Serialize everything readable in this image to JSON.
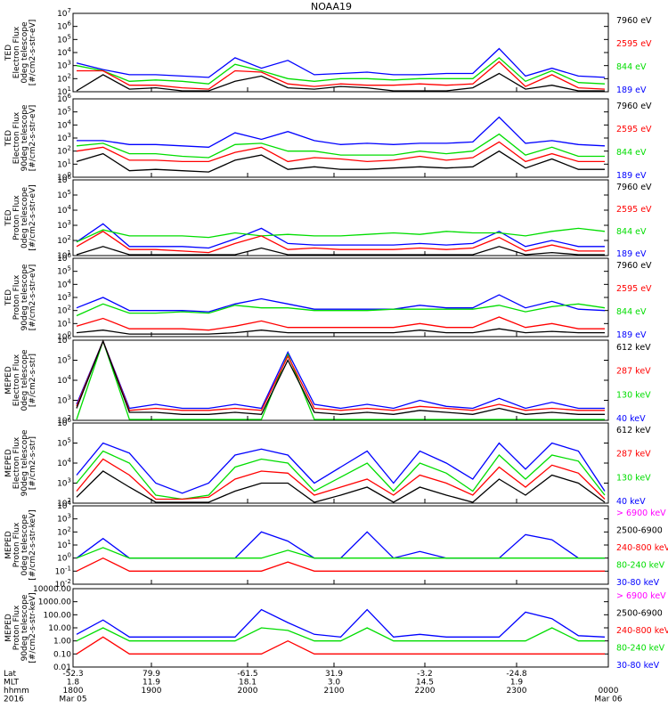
{
  "title": "NOAA19",
  "colors": {
    "black": "#000000",
    "red": "#ff0000",
    "green": "#00dd00",
    "blue": "#0000ff",
    "magenta": "#ff00ff"
  },
  "chart_data": [
    {
      "type": "line",
      "panel": 1,
      "ylabel": [
        "TED",
        "Electron Flux",
        "0deg telescope",
        "[#/cm2-s-str-eV]"
      ],
      "yticks": [
        "10^1",
        "10^2",
        "10^3",
        "10^4",
        "10^5",
        "10^6",
        "10^7"
      ],
      "series": [
        {
          "name": "7960 eV",
          "color": "black",
          "values": [
            1,
            2.3,
            1.2,
            1.3,
            1,
            1,
            1.8,
            2.2,
            1.3,
            1.2,
            1.4,
            1.3,
            1,
            1,
            1,
            1.3,
            2.4,
            1.2,
            1.5,
            1,
            1
          ]
        },
        {
          "name": "2595 eV",
          "color": "red",
          "values": [
            2.6,
            2.6,
            1.5,
            1.5,
            1.3,
            1.2,
            2.6,
            2.5,
            1.6,
            1.4,
            1.6,
            1.5,
            1.5,
            1.6,
            1.5,
            1.6,
            3.3,
            1.4,
            2.3,
            1.3,
            1.2
          ]
        },
        {
          "name": "844 eV",
          "color": "green",
          "values": [
            3,
            2.6,
            1.8,
            1.9,
            1.8,
            1.6,
            3.1,
            2.6,
            2,
            1.8,
            2,
            2,
            1.9,
            2,
            2,
            2,
            3.6,
            1.8,
            2.6,
            1.7,
            1.6
          ]
        },
        {
          "name": "189 eV",
          "color": "blue",
          "values": [
            3.2,
            2.7,
            2.3,
            2.3,
            2.2,
            2.1,
            3.6,
            2.8,
            3.4,
            2.3,
            2.4,
            2.5,
            2.3,
            2.3,
            2.4,
            2.4,
            4.3,
            2.2,
            2.8,
            2.2,
            2.1
          ]
        }
      ]
    },
    {
      "type": "line",
      "panel": 2,
      "ylabel": [
        "TED",
        "Electron Flux",
        "90deg telescope",
        "[#/cm2-s-str-eV]"
      ],
      "yticks": [
        "10^0",
        "10^1",
        "10^2",
        "10^3",
        "10^4",
        "10^5",
        "10^6"
      ],
      "series": [
        {
          "name": "7960 eV",
          "color": "black",
          "values": [
            1.2,
            1.8,
            0.5,
            0.6,
            0.5,
            0.4,
            1.3,
            1.7,
            0.6,
            0.8,
            0.6,
            0.6,
            0.7,
            0.8,
            0.7,
            0.8,
            2,
            0.7,
            1.4,
            0.6,
            0.6
          ]
        },
        {
          "name": "2595 eV",
          "color": "red",
          "values": [
            2,
            2.3,
            1.3,
            1.3,
            1.2,
            1.2,
            1.9,
            2.3,
            1.2,
            1.5,
            1.4,
            1.2,
            1.3,
            1.6,
            1.3,
            1.5,
            2.7,
            1.2,
            1.8,
            1.2,
            1.2
          ]
        },
        {
          "name": "844 eV",
          "color": "green",
          "values": [
            2.4,
            2.6,
            1.8,
            1.8,
            1.6,
            1.5,
            2.5,
            2.6,
            2,
            2,
            1.7,
            1.7,
            1.7,
            2,
            1.8,
            2,
            3.3,
            1.7,
            2.3,
            1.6,
            1.6
          ]
        },
        {
          "name": "189 eV",
          "color": "blue",
          "values": [
            2.8,
            2.8,
            2.5,
            2.5,
            2.4,
            2.3,
            3.4,
            2.9,
            3.5,
            2.8,
            2.5,
            2.6,
            2.5,
            2.6,
            2.6,
            2.7,
            4.6,
            2.6,
            2.8,
            2.5,
            2.4
          ]
        }
      ]
    },
    {
      "type": "line",
      "panel": 3,
      "ylabel": [
        "TED",
        "Proton Flux",
        "0deg telescope",
        "[#/cm2-s-str-eV]"
      ],
      "yticks": [
        "10^1",
        "10^2",
        "10^3",
        "10^4",
        "10^5",
        "10^6"
      ],
      "series": [
        {
          "name": "7960 eV",
          "color": "black",
          "values": [
            1,
            1.6,
            0.8,
            0.8,
            0.8,
            0.7,
            1,
            1.5,
            0.9,
            0.8,
            0.8,
            0.8,
            0.8,
            0.9,
            0.8,
            0.8,
            1.6,
            0.8,
            1.2,
            0.7,
            0.7
          ]
        },
        {
          "name": "2595 eV",
          "color": "red",
          "values": [
            1.6,
            2.6,
            1.4,
            1.4,
            1.3,
            1.2,
            1.8,
            2.3,
            1.4,
            1.5,
            1.4,
            1.4,
            1.4,
            1.5,
            1.4,
            1.5,
            2.2,
            1.3,
            1.7,
            1.3,
            1.3
          ]
        },
        {
          "name": "844 eV",
          "color": "green",
          "values": [
            1.9,
            2.7,
            2.3,
            2.3,
            2.3,
            2.2,
            2.5,
            2.3,
            2.4,
            2.3,
            2.3,
            2.4,
            2.5,
            2.4,
            2.6,
            2.5,
            2.5,
            2.3,
            2.6,
            2.8,
            2.6
          ]
        },
        {
          "name": "189 eV",
          "color": "blue",
          "values": [
            1.9,
            3.1,
            1.6,
            1.6,
            1.6,
            1.5,
            2.1,
            2.8,
            1.8,
            1.7,
            1.7,
            1.7,
            1.7,
            1.8,
            1.7,
            1.8,
            2.6,
            1.6,
            2,
            1.6,
            1.6
          ]
        }
      ]
    },
    {
      "type": "line",
      "panel": 4,
      "ylabel": [
        "TED",
        "Proton Flux",
        "90deg telescope",
        "[#/cm2-s-str-eV]"
      ],
      "yticks": [
        "10^0",
        "10^1",
        "10^2",
        "10^3",
        "10^4",
        "10^5",
        "10^6"
      ],
      "series": [
        {
          "name": "7960 eV",
          "color": "black",
          "values": [
            0.3,
            0.5,
            0.2,
            0.2,
            0.2,
            0.2,
            0.3,
            0.5,
            0.3,
            0.3,
            0.3,
            0.3,
            0.3,
            0.5,
            0.3,
            0.3,
            0.6,
            0.3,
            0.4,
            0.3,
            0.3
          ]
        },
        {
          "name": "2595 eV",
          "color": "red",
          "values": [
            0.8,
            1.4,
            0.6,
            0.6,
            0.6,
            0.5,
            0.8,
            1.2,
            0.7,
            0.7,
            0.7,
            0.7,
            0.7,
            1,
            0.7,
            0.7,
            1.5,
            0.7,
            1,
            0.6,
            0.6
          ]
        },
        {
          "name": "844 eV",
          "color": "green",
          "values": [
            1.6,
            2.5,
            1.8,
            1.8,
            1.9,
            1.8,
            2.4,
            2.2,
            2.2,
            2,
            2,
            2,
            2.1,
            2.1,
            2.1,
            2.1,
            2.4,
            1.9,
            2.3,
            2.5,
            2.2
          ]
        },
        {
          "name": "189 eV",
          "color": "blue",
          "values": [
            2.2,
            3,
            2,
            2,
            2,
            1.9,
            2.5,
            2.9,
            2.5,
            2.1,
            2.1,
            2.1,
            2.1,
            2.4,
            2.2,
            2.2,
            3.2,
            2.2,
            2.7,
            2.1,
            2
          ]
        }
      ]
    },
    {
      "type": "line",
      "panel": 5,
      "ylabel": [
        "MEPED",
        "Electron Flux",
        "0deg telescope",
        "[#/cm2-s-str]"
      ],
      "yticks": [
        "10^2",
        "10^3",
        "10^4",
        "10^5",
        "10^6"
      ],
      "series": [
        {
          "name": "612 keV",
          "color": "black",
          "values": [
            2.6,
            6.1,
            2.4,
            2.4,
            2.3,
            2.3,
            2.4,
            2.3,
            5,
            2.4,
            2.3,
            2.4,
            2.3,
            2.5,
            2.4,
            2.3,
            2.6,
            2.3,
            2.4,
            2.3,
            2.3
          ]
        },
        {
          "name": "287 keV",
          "color": "red",
          "values": [
            2.7,
            6.2,
            2.5,
            2.6,
            2.5,
            2.5,
            2.6,
            2.5,
            5.2,
            2.6,
            2.5,
            2.6,
            2.5,
            2.7,
            2.6,
            2.5,
            2.8,
            2.5,
            2.6,
            2.5,
            2.5
          ]
        },
        {
          "name": "130 keV",
          "color": "green",
          "values": [
            2,
            6.2,
            2,
            2,
            2,
            2,
            2,
            2,
            5.3,
            2,
            2,
            2,
            2,
            2,
            2,
            2,
            2,
            2,
            2,
            2,
            2
          ]
        },
        {
          "name": "40 keV",
          "color": "blue",
          "values": [
            2.8,
            6.3,
            2.6,
            2.8,
            2.6,
            2.6,
            2.8,
            2.6,
            5.4,
            2.8,
            2.6,
            2.8,
            2.6,
            3,
            2.7,
            2.6,
            3.1,
            2.6,
            2.9,
            2.6,
            2.6
          ]
        }
      ]
    },
    {
      "type": "line",
      "panel": 6,
      "ylabel": [
        "MEPED",
        "Electron Flux",
        "90deg telescope",
        "[#/cm2-s-str]"
      ],
      "yticks": [
        "10^2",
        "10^3",
        "10^4",
        "10^5",
        "10^6"
      ],
      "series": [
        {
          "name": "612 keV",
          "color": "black",
          "values": [
            2.3,
            3.6,
            2.8,
            2,
            2,
            2,
            2.6,
            3,
            3,
            2,
            2.4,
            2.8,
            2,
            2.8,
            2.4,
            2,
            3.2,
            2.4,
            3.4,
            3,
            2
          ]
        },
        {
          "name": "287 keV",
          "color": "red",
          "values": [
            2.6,
            4.2,
            3.4,
            2.2,
            2.2,
            2.3,
            3.2,
            3.6,
            3.5,
            2.4,
            2.8,
            3.2,
            2.4,
            3.4,
            3,
            2.4,
            3.8,
            2.8,
            3.9,
            3.5,
            2.2
          ]
        },
        {
          "name": "130 keV",
          "color": "green",
          "values": [
            3,
            4.6,
            4,
            2.4,
            2.2,
            2.4,
            3.8,
            4.2,
            4,
            2.6,
            3.3,
            4,
            2.6,
            4,
            3.5,
            2.6,
            4.4,
            3.2,
            4.4,
            4.1,
            2.4
          ]
        },
        {
          "name": "40 keV",
          "color": "blue",
          "values": [
            3.4,
            5,
            4.5,
            3,
            2.5,
            3,
            4.4,
            4.7,
            4.4,
            3,
            3.8,
            4.6,
            3,
            4.6,
            4,
            3.2,
            5,
            3.7,
            5,
            4.6,
            2.6
          ]
        }
      ]
    },
    {
      "type": "line",
      "panel": 7,
      "ylabel": [
        "MEPED",
        "Proton Flux",
        "0deg telescope",
        "[#/cm2-s-str-keV]"
      ],
      "yticks": [
        "10^-2",
        "10^-1",
        "10^0",
        "10^1",
        "10^2",
        "10^3",
        "10^4"
      ],
      "series": [
        {
          "name": "> 6900 keV",
          "color": "magenta",
          "values": [
            null,
            -1.6,
            null,
            null,
            null,
            null,
            null,
            null,
            -1.8,
            null,
            null,
            null,
            null,
            null,
            null,
            null,
            null,
            null,
            null,
            null,
            null
          ]
        },
        {
          "name": "2500-6900",
          "color": "black",
          "values": [
            null,
            -0.8,
            null,
            null,
            null,
            null,
            null,
            null,
            -1,
            null,
            null,
            null,
            null,
            null,
            null,
            null,
            null,
            null,
            null,
            null,
            null
          ]
        },
        {
          "name": "240-800 keV",
          "color": "red",
          "values": [
            -1,
            0,
            -1,
            -1,
            -1,
            -1,
            -1,
            -1,
            -0.3,
            -1,
            -1,
            -1,
            -1,
            -1,
            -1,
            -1,
            -1,
            -1,
            -1,
            -1,
            -1
          ]
        },
        {
          "name": "80-240 keV",
          "color": "green",
          "values": [
            0,
            0.8,
            0,
            0,
            0,
            0,
            0,
            0,
            0.6,
            0,
            0,
            0,
            0,
            0,
            0,
            0,
            0,
            0,
            0,
            0,
            0
          ]
        },
        {
          "name": "30-80 keV",
          "color": "blue",
          "values": [
            0,
            1.5,
            0,
            0,
            0,
            0,
            0,
            2,
            1.3,
            0,
            0,
            2,
            0,
            0.5,
            0,
            0,
            0,
            1.8,
            1.4,
            0,
            0
          ]
        }
      ]
    },
    {
      "type": "line",
      "panel": 8,
      "ylabel": [
        "MEPED",
        "Proton Flux",
        "90deg telescope",
        "[#/cm2-s-str-keV]"
      ],
      "yticks": [
        "0.01",
        "0.10",
        "1.00",
        "10.00",
        "100.00",
        "1000.00",
        "10000.00"
      ],
      "series": [
        {
          "name": "> 6900 keV",
          "color": "magenta",
          "values": [
            null,
            -1.2,
            null,
            null,
            null,
            null,
            null,
            null,
            -1.4,
            null,
            null,
            null,
            null,
            null,
            null,
            null,
            null,
            null,
            null,
            null,
            null
          ]
        },
        {
          "name": "2500-6900",
          "color": "black",
          "values": [
            null,
            -0.4,
            null,
            null,
            null,
            null,
            null,
            null,
            -0.6,
            null,
            null,
            null,
            null,
            null,
            null,
            null,
            null,
            null,
            null,
            null,
            null
          ]
        },
        {
          "name": "240-800 keV",
          "color": "red",
          "values": [
            -1,
            0.3,
            -1,
            -1,
            -1,
            -1,
            -1,
            -1,
            0,
            -1,
            -1,
            -1,
            -1,
            -1,
            -1,
            -1,
            -1,
            -1,
            -1,
            -1,
            -1
          ]
        },
        {
          "name": "80-240 keV",
          "color": "green",
          "values": [
            0,
            1,
            0,
            0,
            0,
            0,
            0,
            1,
            0.8,
            0,
            0,
            1,
            0,
            0,
            0,
            0,
            0,
            0,
            1,
            0,
            0
          ]
        },
        {
          "name": "30-80 keV",
          "color": "blue",
          "values": [
            0.5,
            1.6,
            0.3,
            0.3,
            0.3,
            0.3,
            0.3,
            2.4,
            1.4,
            0.5,
            0.3,
            2.4,
            0.3,
            0.5,
            0.3,
            0.3,
            0.3,
            2.2,
            1.7,
            0.4,
            0.3
          ]
        }
      ]
    }
  ],
  "xaxis": {
    "row_labels": [
      "Lat",
      "MLT",
      "hhmm",
      "2016"
    ],
    "columns": [
      {
        "lat": "-52.3",
        "mlt": "1.8",
        "hhmm": "1800",
        "date": "Mar 05"
      },
      {
        "lat": "79.9",
        "mlt": "11.9",
        "hhmm": "1900",
        "date": ""
      },
      {
        "lat": "-61.5",
        "mlt": "18.1",
        "hhmm": "2000",
        "date": ""
      },
      {
        "lat": "31.9",
        "mlt": "3.0",
        "hhmm": "2100",
        "date": ""
      },
      {
        "lat": "-3.2",
        "mlt": "14.5",
        "hhmm": "2200",
        "date": ""
      },
      {
        "lat": "-24.8",
        "mlt": "1.9",
        "hhmm": "2300",
        "date": ""
      },
      {
        "lat": "",
        "mlt": "",
        "hhmm": "0000",
        "date": "Mar 06"
      }
    ]
  }
}
